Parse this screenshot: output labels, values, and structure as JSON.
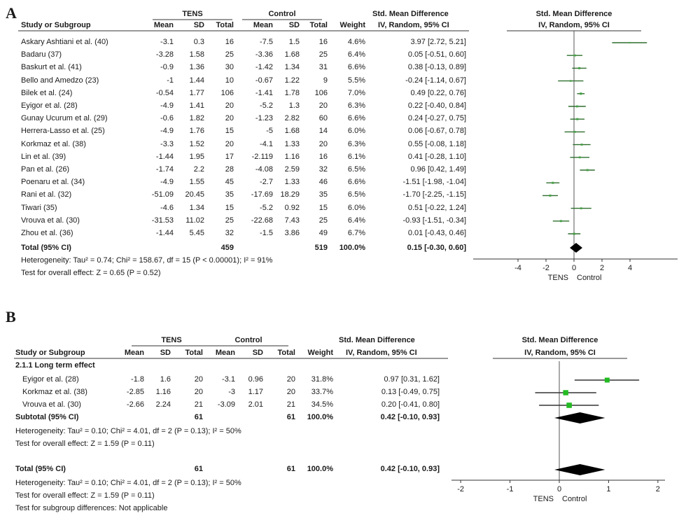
{
  "chart_data": [
    {
      "type": "forest",
      "panel_label": "A",
      "headers": {
        "group1": "TENS",
        "group2": "Control",
        "study": "Study or Subgroup",
        "mean": "Mean",
        "sd": "SD",
        "total": "Total",
        "weight": "Weight",
        "effect_title": "Std. Mean Difference",
        "effect_sub": "IV, Random, 95% CI",
        "plot_title": "Std. Mean Difference",
        "plot_sub": "IV, Random, 95% CI"
      },
      "studies": [
        {
          "name": "Askary Ashtiani et al. (40)",
          "m1": "-3.1",
          "sd1": "0.3",
          "n1": "16",
          "m2": "-7.5",
          "sd2": "1.5",
          "n2": "16",
          "weight": "4.6%",
          "ci_text": "3.97 [2.72, 5.21]",
          "est": 3.97,
          "lo": 2.72,
          "hi": 5.21
        },
        {
          "name": "Badaru (37)",
          "m1": "-3.28",
          "sd1": "1.58",
          "n1": "25",
          "m2": "-3.36",
          "sd2": "1.68",
          "n2": "25",
          "weight": "6.4%",
          "ci_text": "0.05 [-0.51, 0.60]",
          "est": 0.05,
          "lo": -0.51,
          "hi": 0.6
        },
        {
          "name": "Baskurt et al. (41)",
          "m1": "-0.9",
          "sd1": "1.36",
          "n1": "30",
          "m2": "-1.42",
          "sd2": "1.34",
          "n2": "31",
          "weight": "6.6%",
          "ci_text": "0.38 [-0.13, 0.89]",
          "est": 0.38,
          "lo": -0.13,
          "hi": 0.89
        },
        {
          "name": "Bello and Amedzo (23)",
          "m1": "-1",
          "sd1": "1.44",
          "n1": "10",
          "m2": "-0.67",
          "sd2": "1.22",
          "n2": "9",
          "weight": "5.5%",
          "ci_text": "-0.24 [-1.14, 0.67]",
          "est": -0.24,
          "lo": -1.14,
          "hi": 0.67
        },
        {
          "name": "Bilek et al. (24)",
          "m1": "-0.54",
          "sd1": "1.77",
          "n1": "106",
          "m2": "-1.41",
          "sd2": "1.78",
          "n2": "106",
          "weight": "7.0%",
          "ci_text": "0.49 [0.22, 0.76]",
          "est": 0.49,
          "lo": 0.22,
          "hi": 0.76
        },
        {
          "name": "Eyigor et al. (28)",
          "m1": "-4.9",
          "sd1": "1.41",
          "n1": "20",
          "m2": "-5.2",
          "sd2": "1.3",
          "n2": "20",
          "weight": "6.3%",
          "ci_text": "0.22 [-0.40, 0.84]",
          "est": 0.22,
          "lo": -0.4,
          "hi": 0.84
        },
        {
          "name": "Gunay Ucurum et al. (29)",
          "m1": "-0.6",
          "sd1": "1.82",
          "n1": "20",
          "m2": "-1.23",
          "sd2": "2.82",
          "n2": "60",
          "weight": "6.6%",
          "ci_text": "0.24 [-0.27, 0.75]",
          "est": 0.24,
          "lo": -0.27,
          "hi": 0.75
        },
        {
          "name": "Herrera-Lasso et al. (25)",
          "m1": "-4.9",
          "sd1": "1.76",
          "n1": "15",
          "m2": "-5",
          "sd2": "1.68",
          "n2": "14",
          "weight": "6.0%",
          "ci_text": "0.06 [-0.67, 0.78]",
          "est": 0.06,
          "lo": -0.67,
          "hi": 0.78
        },
        {
          "name": "Korkmaz et al. (38)",
          "m1": "-3.3",
          "sd1": "1.52",
          "n1": "20",
          "m2": "-4.1",
          "sd2": "1.33",
          "n2": "20",
          "weight": "6.3%",
          "ci_text": "0.55 [-0.08, 1.18]",
          "est": 0.55,
          "lo": -0.08,
          "hi": 1.18
        },
        {
          "name": "Lin et al. (39)",
          "m1": "-1.44",
          "sd1": "1.95",
          "n1": "17",
          "m2": "-2.119",
          "sd2": "1.16",
          "n2": "16",
          "weight": "6.1%",
          "ci_text": "0.41 [-0.28, 1.10]",
          "est": 0.41,
          "lo": -0.28,
          "hi": 1.1
        },
        {
          "name": "Pan et al. (26)",
          "m1": "-1.74",
          "sd1": "2.2",
          "n1": "28",
          "m2": "-4.08",
          "sd2": "2.59",
          "n2": "32",
          "weight": "6.5%",
          "ci_text": "0.96 [0.42, 1.49]",
          "est": 0.96,
          "lo": 0.42,
          "hi": 1.49
        },
        {
          "name": "Poenaru et al. (34)",
          "m1": "-4.9",
          "sd1": "1.55",
          "n1": "45",
          "m2": "-2.7",
          "sd2": "1.33",
          "n2": "46",
          "weight": "6.6%",
          "ci_text": "-1.51 [-1.98, -1.04]",
          "est": -1.51,
          "lo": -1.98,
          "hi": -1.04
        },
        {
          "name": "Rani et al. (32)",
          "m1": "-51.09",
          "sd1": "20.45",
          "n1": "35",
          "m2": "-17.69",
          "sd2": "18.29",
          "n2": "35",
          "weight": "6.5%",
          "ci_text": "-1.70 [-2.25, -1.15]",
          "est": -1.7,
          "lo": -2.25,
          "hi": -1.15
        },
        {
          "name": "Tiwari (35)",
          "m1": "-4.6",
          "sd1": "1.34",
          "n1": "15",
          "m2": "-5.2",
          "sd2": "0.92",
          "n2": "15",
          "weight": "6.0%",
          "ci_text": "0.51 [-0.22, 1.24]",
          "est": 0.51,
          "lo": -0.22,
          "hi": 1.24
        },
        {
          "name": "Vrouva et al. (30)",
          "m1": "-31.53",
          "sd1": "11.02",
          "n1": "25",
          "m2": "-22.68",
          "sd2": "7.43",
          "n2": "25",
          "weight": "6.4%",
          "ci_text": "-0.93 [-1.51, -0.34]",
          "est": -0.93,
          "lo": -1.51,
          "hi": -0.34
        },
        {
          "name": "Zhou et al. (36)",
          "m1": "-1.44",
          "sd1": "5.45",
          "n1": "32",
          "m2": "-1.5",
          "sd2": "3.86",
          "n2": "49",
          "weight": "6.7%",
          "ci_text": "0.01 [-0.43, 0.46]",
          "est": 0.01,
          "lo": -0.43,
          "hi": 0.46
        }
      ],
      "total": {
        "label": "Total (95% CI)",
        "n1": "459",
        "n2": "519",
        "weight": "100.0%",
        "ci_text": "0.15 [-0.30, 0.60]",
        "est": 0.15,
        "lo": -0.3,
        "hi": 0.6
      },
      "heterogeneity": "Heterogeneity: Tau² = 0.74; Chi² = 158.67, df = 15 (P < 0.00001); I² = 91%",
      "overall_test": "Test for overall effect: Z = 0.65 (P = 0.52)",
      "axis": {
        "xlim": [
          -6,
          6
        ],
        "ticks": [
          "-4",
          "-2",
          "0",
          "2",
          "4"
        ],
        "tick_values": [
          -4,
          -2,
          0,
          2,
          4
        ],
        "label_left": "TENS",
        "label_right": "Control"
      },
      "marker_color": "#44a044"
    },
    {
      "type": "forest",
      "panel_label": "B",
      "headers": {
        "group1": "TENS",
        "group2": "Control",
        "study": "Study or Subgroup",
        "mean": "Mean",
        "sd": "SD",
        "total": "Total",
        "weight": "Weight",
        "effect_title": "Std. Mean Difference",
        "effect_sub": "IV, Random, 95% CI",
        "plot_title": "Std. Mean Difference",
        "plot_sub": "IV, Random, 95% CI"
      },
      "subgroup_title": "2.1.1 Long term effect",
      "studies": [
        {
          "name": "Eyigor et al. (28)",
          "m1": "-1.8",
          "sd1": "1.6",
          "n1": "20",
          "m2": "-3.1",
          "sd2": "0.96",
          "n2": "20",
          "weight": "31.8%",
          "ci_text": "0.97 [0.31, 1.62]",
          "est": 0.97,
          "lo": 0.31,
          "hi": 1.62
        },
        {
          "name": "Korkmaz et al. (38)",
          "m1": "-2.85",
          "sd1": "1.16",
          "n1": "20",
          "m2": "-3",
          "sd2": "1.17",
          "n2": "20",
          "weight": "33.7%",
          "ci_text": "0.13 [-0.49, 0.75]",
          "est": 0.13,
          "lo": -0.49,
          "hi": 0.75
        },
        {
          "name": "Vrouva et al. (30)",
          "m1": "-2.66",
          "sd1": "2.24",
          "n1": "21",
          "m2": "-3.09",
          "sd2": "2.01",
          "n2": "21",
          "weight": "34.5%",
          "ci_text": "0.20 [-0.41, 0.80]",
          "est": 0.2,
          "lo": -0.41,
          "hi": 0.8
        }
      ],
      "subtotal": {
        "label": "Subtotal (95% CI)",
        "n1": "61",
        "n2": "61",
        "weight": "100.0%",
        "ci_text": "0.42 [-0.10, 0.93]",
        "est": 0.42,
        "lo": -0.1,
        "hi": 0.93
      },
      "subtotal_heterogeneity": "Heterogeneity: Tau² = 0.10; Chi² = 4.01, df = 2 (P = 0.13); I² = 50%",
      "subtotal_test": "Test for overall effect: Z = 1.59 (P = 0.11)",
      "total": {
        "label": "Total (95% CI)",
        "n1": "61",
        "n2": "61",
        "weight": "100.0%",
        "ci_text": "0.42 [-0.10, 0.93]",
        "est": 0.42,
        "lo": -0.1,
        "hi": 0.93
      },
      "heterogeneity": "Heterogeneity: Tau² = 0.10; Chi² = 4.01, df = 2 (P = 0.13); I² = 50%",
      "overall_test": "Test for overall effect: Z = 1.59 (P = 0.11)",
      "subgroup_diff": "Test for subgroup differences: Not applicable",
      "axis": {
        "xlim": [
          -2.3,
          2.3
        ],
        "ticks": [
          "-2",
          "-1",
          "0",
          "1",
          "2"
        ],
        "tick_values": [
          -2,
          -1,
          0,
          1,
          2
        ],
        "label_left": "TENS",
        "label_right": "Control"
      },
      "marker_color": "#22bb22"
    }
  ]
}
